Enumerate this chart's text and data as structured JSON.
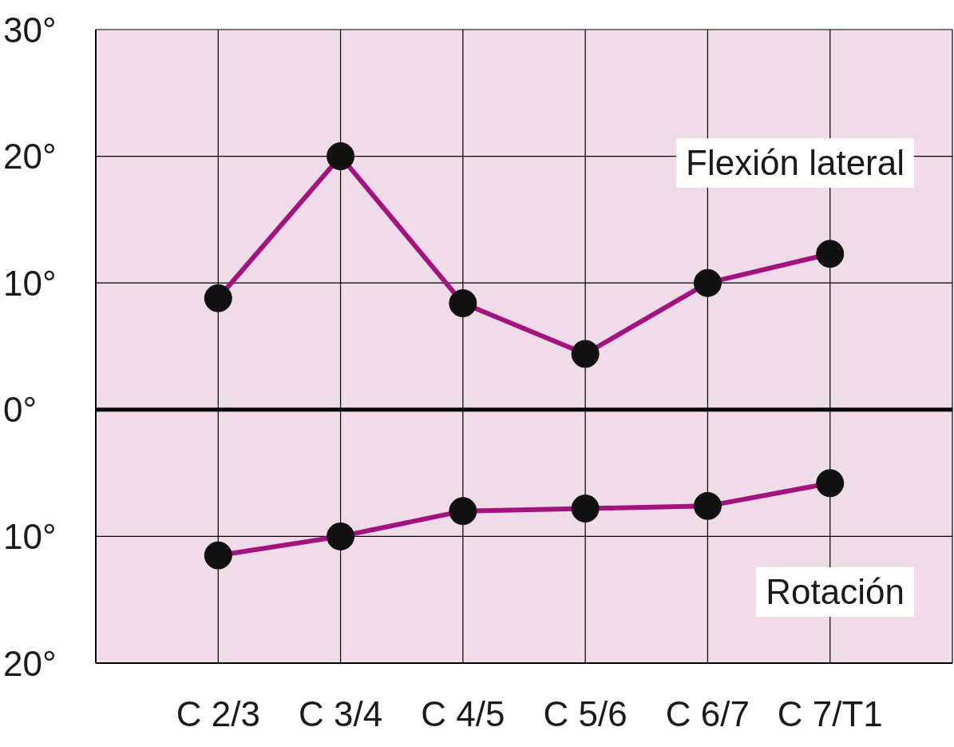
{
  "chart_data": {
    "type": "line",
    "categories": [
      "C 2/3",
      "C 3/4",
      "C 4/5",
      "C 5/6",
      "C 6/7",
      "C 7/T1"
    ],
    "series": [
      {
        "name": "Flexión lateral",
        "color": "#a3137e",
        "values": [
          8.8,
          20,
          8.4,
          4.4,
          10,
          12.3
        ]
      },
      {
        "name": "Rotación",
        "color": "#a3137e",
        "values": [
          -11.5,
          -10,
          -8,
          -7.8,
          -7.6,
          -5.8
        ]
      }
    ],
    "ylim": [
      -20,
      30
    ],
    "yticks": [
      {
        "value": -20,
        "label": "20°"
      },
      {
        "value": -10,
        "label": "10°"
      },
      {
        "value": 0,
        "label": "0°"
      },
      {
        "value": 10,
        "label": "10°"
      },
      {
        "value": 20,
        "label": "20°"
      },
      {
        "value": 30,
        "label": "30°"
      }
    ],
    "ref_lines": [
      {
        "axis": "y",
        "value": 0,
        "color": "#000000"
      }
    ],
    "grid": true,
    "marker": "circle",
    "line_style": "solid"
  }
}
